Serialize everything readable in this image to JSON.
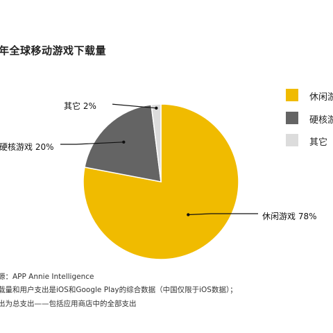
{
  "title": "年全球移动游戏下载量",
  "chart_data": {
    "type": "pie",
    "title": "年全球移动游戏下载量",
    "categories": [
      "休闲游戏",
      "硬核游戏",
      "其它"
    ],
    "values": [
      78,
      20,
      2
    ],
    "labels": [
      "休闲游戏 78%",
      "硬核游戏 20%",
      "其它 2%"
    ],
    "colors": [
      "#f0bb00",
      "#646464",
      "#dcdcdc"
    ],
    "legend": {
      "placement": "right",
      "entries": [
        "休闲游",
        "硬核游",
        "其它"
      ]
    }
  },
  "footnotes": [
    "源：APP Annie Intelligence",
    "载量和用户支出是iOS和Google Play的综合数据（中国仅限于iOS数据）；",
    "出为总支出——包括应用商店中的全部支出"
  ]
}
